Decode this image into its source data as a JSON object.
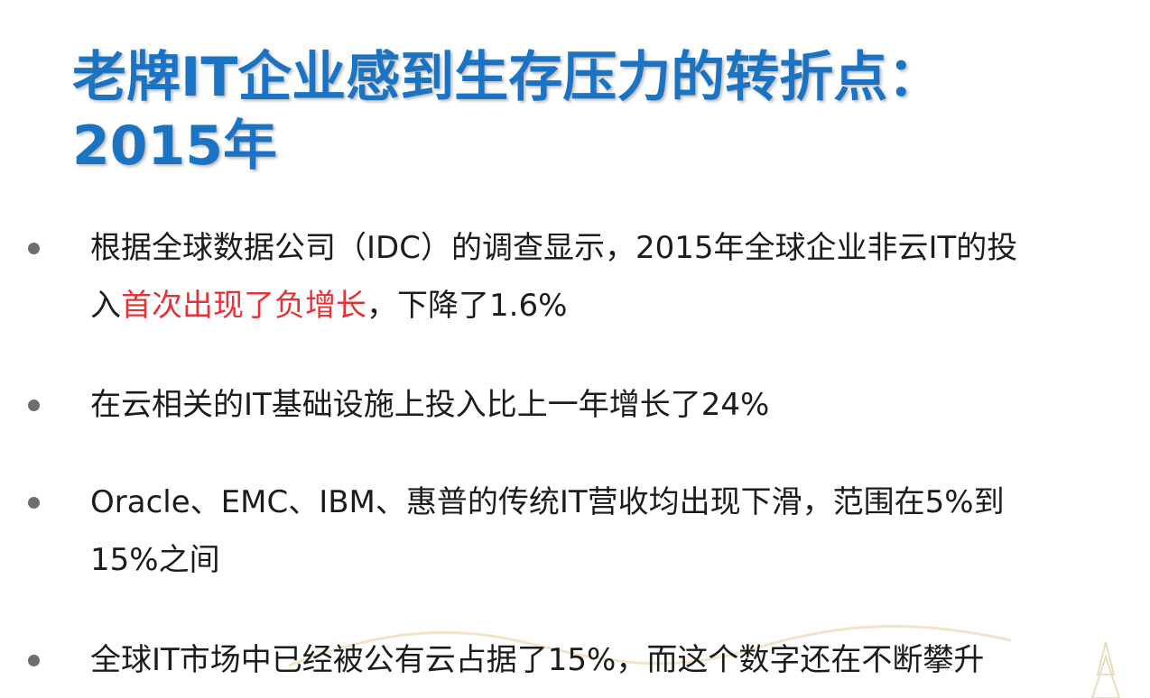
{
  "slide": {
    "title_line1": "老牌IT企业感到生存压力的转折点：",
    "title_line2": "2015年",
    "bullets": [
      {
        "line1": "根据全球数据公司（IDC）的调查显示，2015年全球企业非云IT的投",
        "line2_pre": "入",
        "line2_highlight": "首次出现了负增长",
        "line2_post": "，下降了1.6%"
      },
      {
        "line1": "在云相关的IT基础设施上投入比上一年增长了24%"
      },
      {
        "line1": "Oracle、EMC、IBM、惠普的传统IT营收均出现下滑，范围在5%到",
        "line2": "15%之间"
      },
      {
        "line1": "全球IT市场中已经被公有云占据了15%，而这个数字还在不断攀升"
      }
    ]
  },
  "colors": {
    "title": "#1b74c3",
    "body_text": "#1c1c1c",
    "highlight": "#e53333",
    "bullet_dot": "#6e6e6e"
  }
}
